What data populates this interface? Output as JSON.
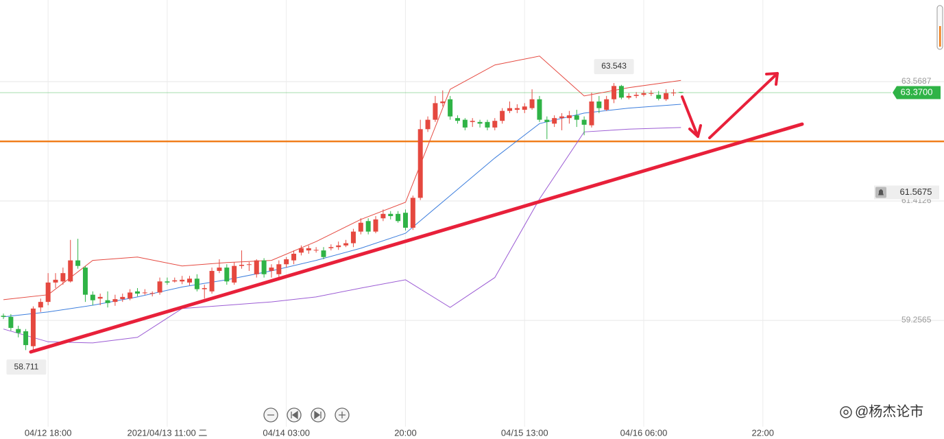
{
  "chart_data": {
    "type": "candlestick",
    "open": [
      59.34,
      59.32,
      59.1,
      59.06,
      58.79,
      59.49,
      59.59,
      59.94,
      59.96,
      59.96,
      60.34,
      60.21,
      59.72,
      59.65,
      59.62,
      59.59,
      59.64,
      59.65,
      59.78,
      59.75,
      59.74,
      59.76,
      59.96,
      59.96,
      59.96,
      59.94,
      60.01,
      59.82,
      59.78,
      60.15,
      60.21,
      59.94,
      60.24,
      60.26,
      60.09,
      60.34,
      60.15,
      60.09,
      60.27,
      60.34,
      60.48,
      60.52,
      60.52,
      60.52,
      60.56,
      60.58,
      60.61,
      60.65,
      60.86,
      61.05,
      60.86,
      61.1,
      61.18,
      61.18,
      61.2,
      60.93,
      61.47,
      62.71,
      62.88,
      63.18,
      63.25,
      62.91,
      62.88,
      62.84,
      62.84,
      62.84,
      62.74,
      62.86,
      63.04,
      63.06,
      63.06,
      63.09,
      63.25,
      62.88,
      62.81,
      62.91,
      62.91,
      62.96,
      62.88,
      62.78,
      63.21,
      63.06,
      63.25,
      63.49,
      63.28,
      63.31,
      63.33,
      63.35,
      63.33,
      63.25,
      63.36,
      63.38
    ],
    "high": [
      59.38,
      59.37,
      59.16,
      59.1,
      59.51,
      59.65,
      60.11,
      60.11,
      60.21,
      60.71,
      60.73,
      60.24,
      59.78,
      59.74,
      59.78,
      59.72,
      59.74,
      59.82,
      59.84,
      59.82,
      59.78,
      60.03,
      60.03,
      60.03,
      60.06,
      60.06,
      60.09,
      59.9,
      60.21,
      60.36,
      60.27,
      60.31,
      60.52,
      60.31,
      60.36,
      60.38,
      60.27,
      60.34,
      60.4,
      60.52,
      60.61,
      60.61,
      60.58,
      60.58,
      60.63,
      60.68,
      60.71,
      60.91,
      61.1,
      61.1,
      61.14,
      61.26,
      61.23,
      61.23,
      61.26,
      61.51,
      62.88,
      62.94,
      63.31,
      63.41,
      63.31,
      62.96,
      62.91,
      62.91,
      62.88,
      62.88,
      62.91,
      63.09,
      63.21,
      63.16,
      63.18,
      63.43,
      63.31,
      62.94,
      62.96,
      63.0,
      63.04,
      63.06,
      62.94,
      63.37,
      63.31,
      63.31,
      63.543,
      63.51,
      63.36,
      63.38,
      63.41,
      63.41,
      63.4,
      63.43,
      63.43,
      63.38
    ],
    "low": [
      59.28,
      59.07,
      58.95,
      58.72,
      58.711,
      59.41,
      59.53,
      59.84,
      59.9,
      59.94,
      60.19,
      59.59,
      59.53,
      59.53,
      59.49,
      59.52,
      59.59,
      59.62,
      59.69,
      59.72,
      59.69,
      59.72,
      59.9,
      59.94,
      59.91,
      59.89,
      59.78,
      59.65,
      59.74,
      60.11,
      59.9,
      59.9,
      60.19,
      60.15,
      60.03,
      60.03,
      60.03,
      60.03,
      60.21,
      60.27,
      60.43,
      60.46,
      60.48,
      60.36,
      60.52,
      60.53,
      60.58,
      60.58,
      60.81,
      60.81,
      60.83,
      61.05,
      61.08,
      61.02,
      60.88,
      60.89,
      61.43,
      62.66,
      62.84,
      63.12,
      62.88,
      62.81,
      62.69,
      62.75,
      62.74,
      62.69,
      62.69,
      62.81,
      63.0,
      63.0,
      63.0,
      63.06,
      62.84,
      62.53,
      62.75,
      62.69,
      62.81,
      62.75,
      62.6,
      62.74,
      63.0,
      63.04,
      63.18,
      63.25,
      63.25,
      63.27,
      63.3,
      63.31,
      63.23,
      63.22,
      63.31,
      63.36
    ],
    "close": [
      59.32,
      59.12,
      59.03,
      58.81,
      59.47,
      59.59,
      59.94,
      59.99,
      60.11,
      60.34,
      60.24,
      59.72,
      59.62,
      59.68,
      59.57,
      59.64,
      59.68,
      59.76,
      59.74,
      59.76,
      59.75,
      59.96,
      59.94,
      59.98,
      59.99,
      60.01,
      59.82,
      59.84,
      60.15,
      60.21,
      59.96,
      60.24,
      60.26,
      60.27,
      60.34,
      60.09,
      60.21,
      60.27,
      60.36,
      60.46,
      60.56,
      60.56,
      60.53,
      60.4,
      60.58,
      60.61,
      60.65,
      60.86,
      61.02,
      60.86,
      61.08,
      61.18,
      61.14,
      61.05,
      60.93,
      61.47,
      62.71,
      62.88,
      63.18,
      63.21,
      62.94,
      62.86,
      62.74,
      62.86,
      62.81,
      62.74,
      62.86,
      63.04,
      63.09,
      63.09,
      63.12,
      63.25,
      62.88,
      62.84,
      62.91,
      62.94,
      62.96,
      62.88,
      62.79,
      63.21,
      63.09,
      63.25,
      63.49,
      63.28,
      63.31,
      63.33,
      63.36,
      63.36,
      63.26,
      63.36,
      63.37,
      63.37
    ],
    "up_color": "#e5483f",
    "down_color": "#2fb346",
    "band_x": [
      0,
      6,
      12,
      18,
      24,
      30,
      36,
      42,
      48,
      54,
      60,
      66,
      72,
      78,
      84,
      91
    ],
    "bands": [
      {
        "color": "#e5483f",
        "values": [
          59.63,
          59.72,
          60.34,
          60.4,
          60.24,
          60.3,
          60.34,
          60.68,
          61.08,
          61.39,
          63.43,
          63.87,
          64.03,
          63.31,
          63.46,
          63.59
        ]
      },
      {
        "color": "#3b7ddd",
        "values": [
          59.32,
          59.41,
          59.53,
          59.68,
          59.86,
          59.99,
          60.15,
          60.34,
          60.56,
          60.83,
          61.51,
          62.19,
          62.81,
          63.0,
          63.09,
          63.16
        ]
      },
      {
        "color": "#9b5bd4",
        "values": [
          59.1,
          58.87,
          58.85,
          58.95,
          59.47,
          59.53,
          59.59,
          59.68,
          59.84,
          59.99,
          59.49,
          60.03,
          61.45,
          62.66,
          62.71,
          62.74
        ]
      }
    ],
    "xlim": [
      -0.46,
      119.24
    ],
    "xticks": [
      {
        "value": 6,
        "label": "04/12 18:00"
      },
      {
        "value": 22,
        "label": "2021/04/13 11:00 二"
      },
      {
        "value": 38,
        "label": "04/14 03:00"
      },
      {
        "value": 54,
        "label": "20:00"
      },
      {
        "value": 70,
        "label": "04/15 13:00"
      },
      {
        "value": 86,
        "label": "04/16 06:00"
      },
      {
        "value": 102,
        "label": "22:00"
      }
    ],
    "ylim": [
      57.337,
      65.043
    ],
    "yticks": [
      63.5687,
      61.4126,
      59.2565
    ],
    "grid": true,
    "last_price": {
      "value": 63.37,
      "label": "63.3700"
    },
    "last_price_color": "#2fb346",
    "alert_price": 61.5675,
    "price_line": 62.49,
    "price_line_color": "#f07d1a",
    "watermark": "@杨杰论市"
  }
}
